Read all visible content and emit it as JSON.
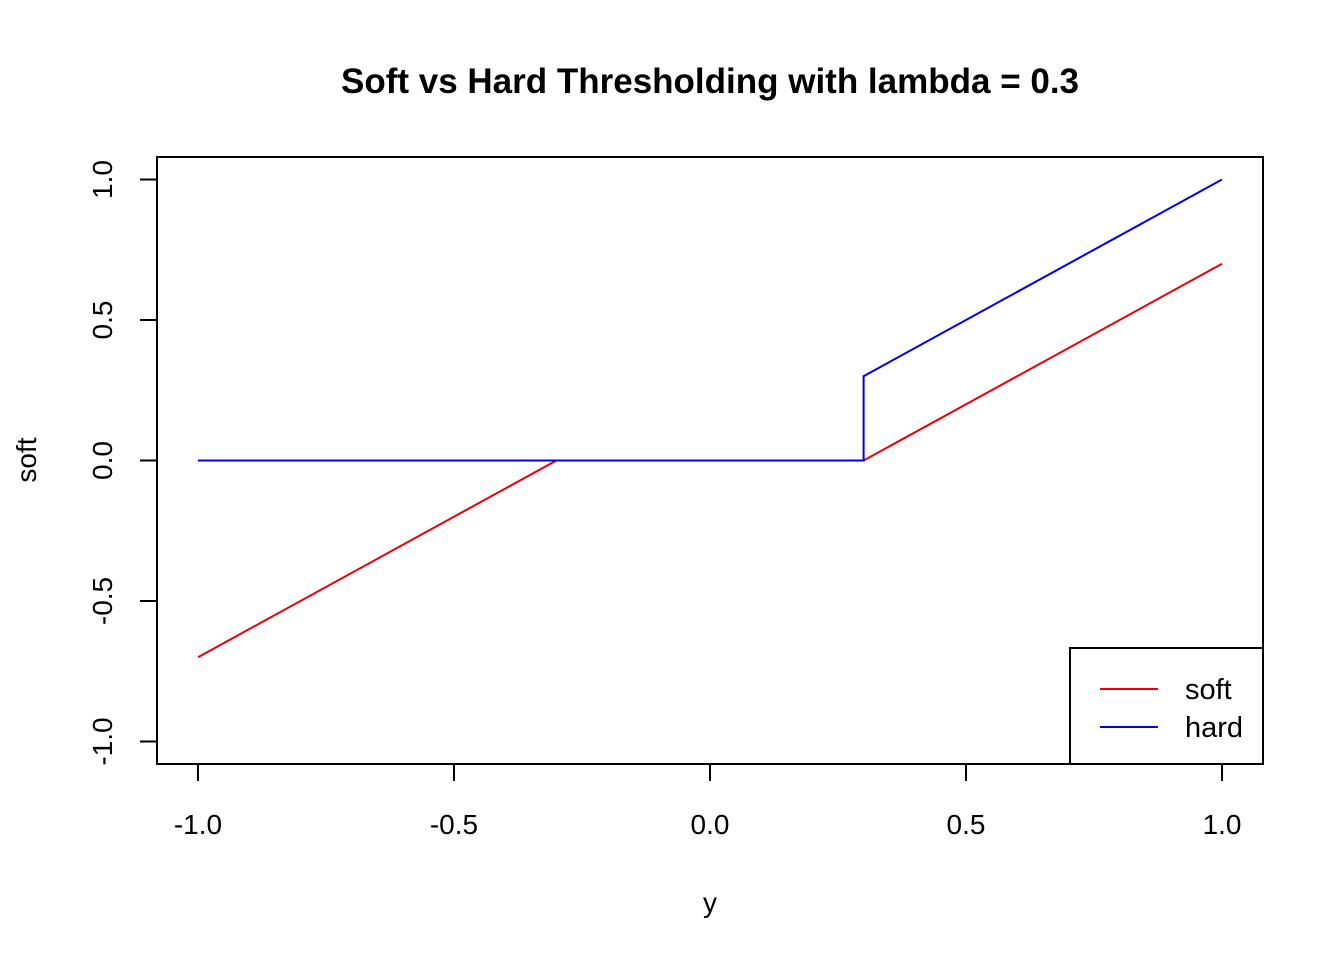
{
  "chart_data": {
    "type": "line",
    "title": "Soft vs Hard Thresholding with lambda = 0.3",
    "xlabel": "y",
    "ylabel": "soft",
    "xlim": [
      -1.08,
      1.08
    ],
    "ylim": [
      -1.08,
      1.08
    ],
    "x_ticks": [
      -1.0,
      -0.5,
      0.0,
      0.5,
      1.0
    ],
    "x_tick_labels": [
      "-1.0",
      "-0.5",
      "0.0",
      "0.5",
      "1.0"
    ],
    "y_ticks": [
      -1.0,
      -0.5,
      0.0,
      0.5,
      1.0
    ],
    "y_tick_labels": [
      "-1.0",
      "-0.5",
      "0.0",
      "0.5",
      "1.0"
    ],
    "grid": false,
    "legend_position": "bottom-right",
    "series": [
      {
        "name": "soft",
        "color": "#e8000b",
        "x": [
          -1.0,
          -0.3,
          0.3,
          1.0
        ],
        "y": [
          -0.7,
          0.0,
          0.0,
          0.7
        ]
      },
      {
        "name": "hard",
        "color": "#0000e8",
        "x": [
          -1.0,
          0.3,
          0.3,
          1.0
        ],
        "y": [
          0.0,
          0.0,
          0.3,
          1.0
        ]
      }
    ]
  }
}
